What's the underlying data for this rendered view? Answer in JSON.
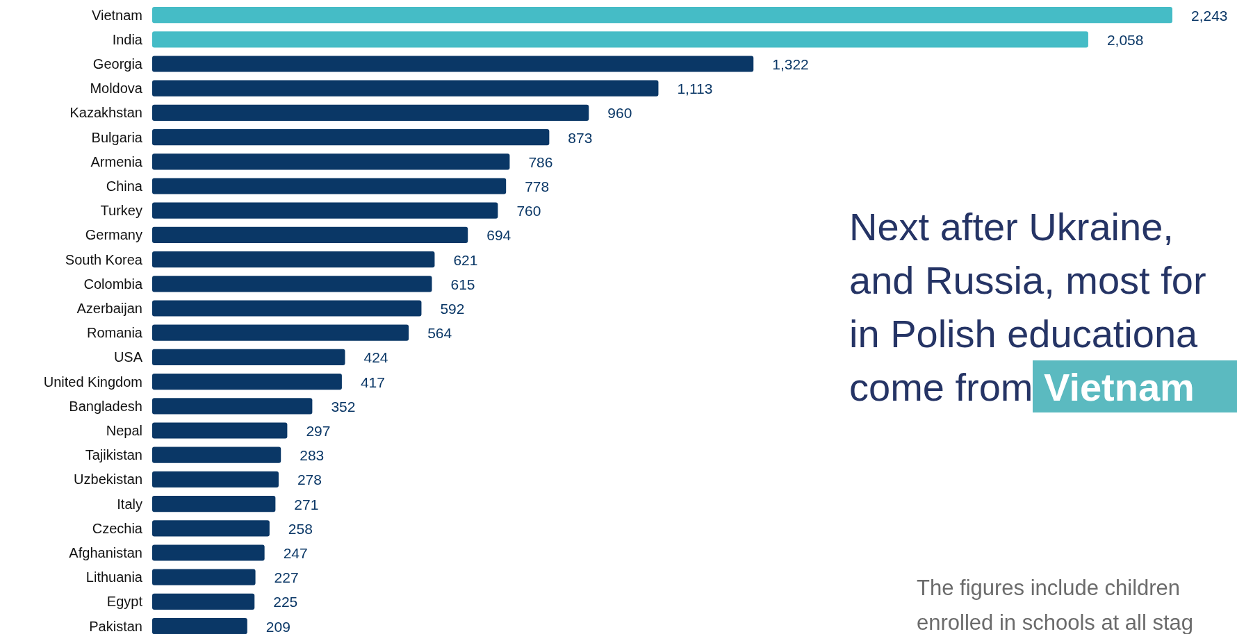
{
  "chart_data": {
    "type": "bar",
    "orientation": "horizontal",
    "value_labels": [
      "2,243",
      "2,058",
      "1,322",
      "1,113",
      "960",
      "873",
      "786",
      "778",
      "760",
      "694",
      "621",
      "615",
      "592",
      "564",
      "424",
      "417",
      "352",
      "297",
      "283",
      "278",
      "271",
      "258",
      "247",
      "227",
      "225",
      "209"
    ],
    "title": "Next after Ukraine,\nand Russia, most for\nin Polish educationa\ncome from Vietnam",
    "subtitle": "The figures include children\nenrolled in schools at all stag",
    "categories": [
      "Vietnam",
      "India",
      "Georgia",
      "Moldova",
      "Kazakhstan",
      "Bulgaria",
      "Armenia",
      "China",
      "Turkey",
      "Germany",
      "South Korea",
      "Colombia",
      "Azerbaijan",
      "Romania",
      "USA",
      "United Kingdom",
      "Bangladesh",
      "Nepal",
      "Tajikistan",
      "Uzbekistan",
      "Italy",
      "Czechia",
      "Afghanistan",
      "Lithuania",
      "Egypt",
      "Pakistan"
    ],
    "values": [
      2243,
      2058,
      1322,
      1113,
      960,
      873,
      786,
      778,
      760,
      694,
      621,
      615,
      592,
      564,
      424,
      417,
      352,
      297,
      283,
      278,
      271,
      258,
      247,
      227,
      225,
      209
    ],
    "colors": [
      "#45bcc6",
      "#45bcc6",
      "#0a3766",
      "#0a3766",
      "#0a3766",
      "#0a3766",
      "#0a3766",
      "#0a3766",
      "#0a3766",
      "#0a3766",
      "#0a3766",
      "#0a3766",
      "#0a3766",
      "#0a3766",
      "#0a3766",
      "#0a3766",
      "#0a3766",
      "#0a3766",
      "#0a3766",
      "#0a3766",
      "#0a3766",
      "#0a3766",
      "#0a3766",
      "#0a3766",
      "#0a3766",
      "#0a3766"
    ]
  }
}
